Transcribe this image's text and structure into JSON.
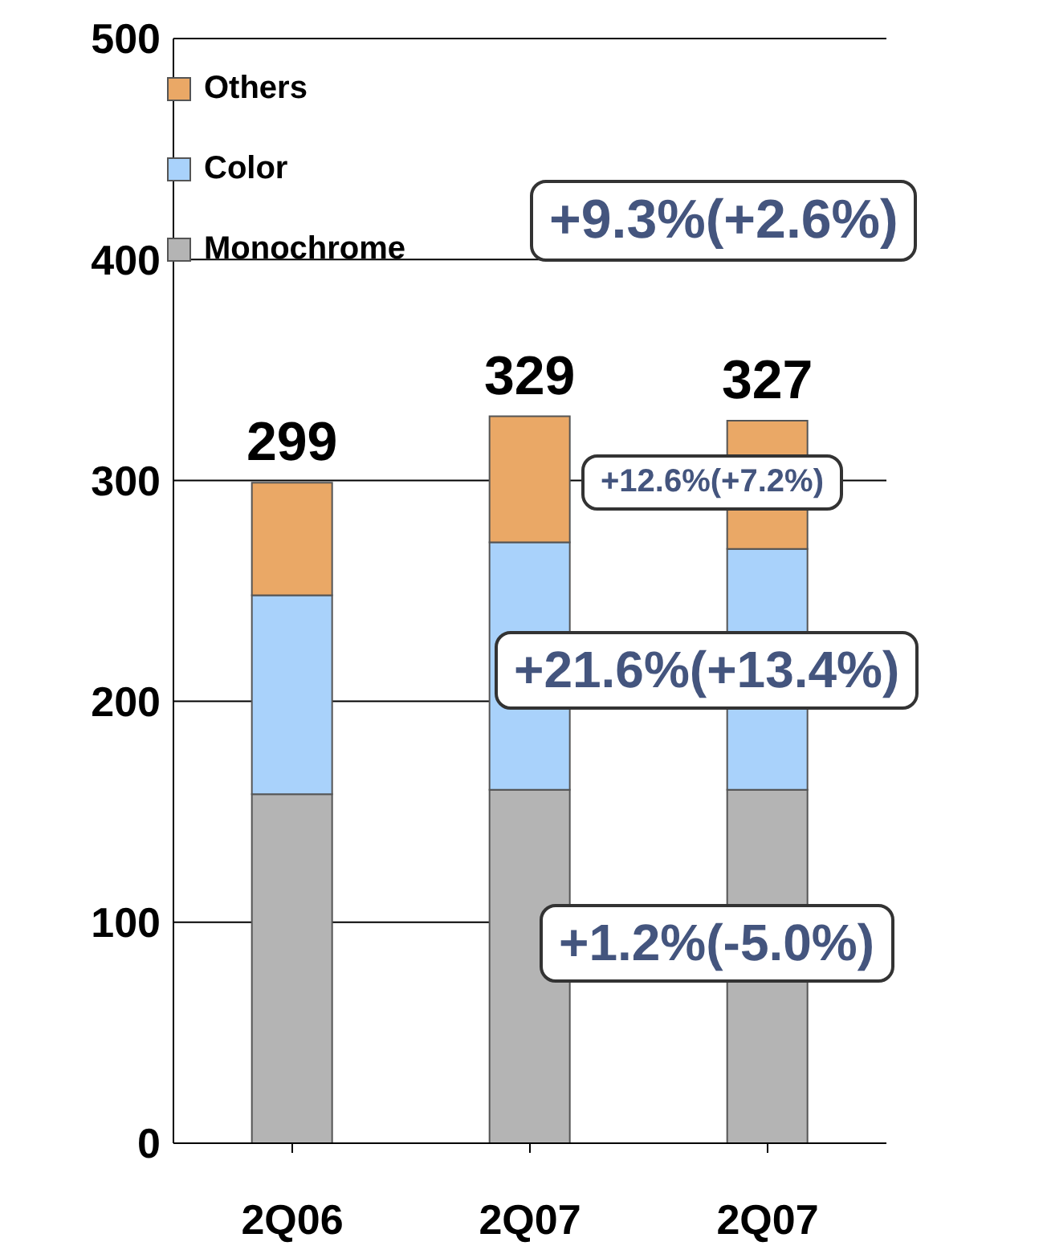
{
  "chart_data": {
    "type": "bar",
    "stacked": true,
    "categories": [
      "2Q06",
      "2Q07",
      "2Q07"
    ],
    "series": [
      {
        "name": "Monochrome",
        "color": "#b4b4b4",
        "values": [
          158,
          160,
          160
        ]
      },
      {
        "name": "Color",
        "color": "#a9d2fb",
        "values": [
          90,
          112,
          109
        ]
      },
      {
        "name": "Others",
        "color": "#eaa866",
        "values": [
          51,
          57,
          58
        ]
      }
    ],
    "totals": [
      "299",
      "329",
      "327"
    ],
    "ylim": [
      0,
      500
    ],
    "yticks": [
      0,
      100,
      200,
      300,
      400,
      500
    ],
    "grid": "y",
    "legend": "top left",
    "annotations": [
      "+9.3%(+2.6%)",
      "+12.6%(+7.2%)",
      "+21.6%(+13.4%)",
      "+1.2%(-5.0%)"
    ]
  }
}
